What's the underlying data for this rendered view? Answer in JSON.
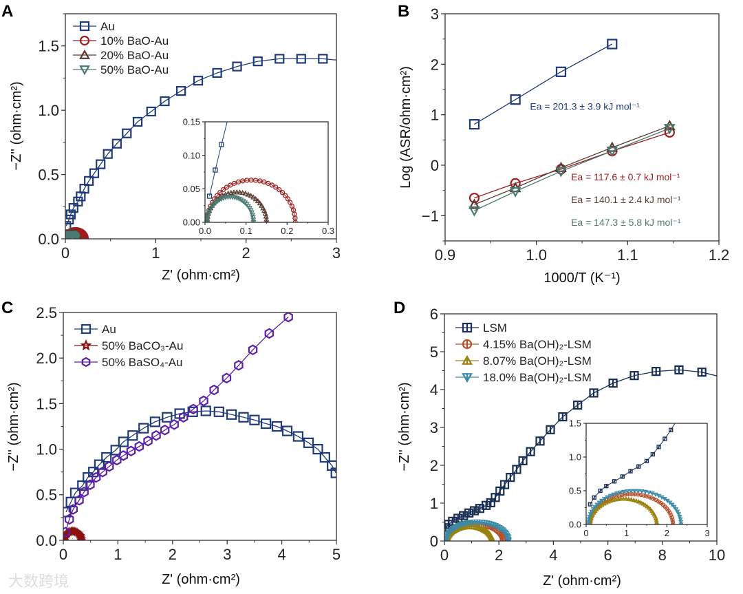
{
  "panels": [
    "A",
    "B",
    "C",
    "D"
  ],
  "watermark": "大数跨境",
  "chart_data": [
    {
      "id": "A",
      "type": "scatter",
      "xlabel": "Z' (ohm·cm²)",
      "ylabel": "−Z'' (ohm·cm²)",
      "xlim": [
        0,
        3
      ],
      "ylim": [
        0,
        1.75
      ],
      "xticks": [
        0,
        1,
        2,
        3
      ],
      "xticklabels": [
        "0",
        "1",
        "2",
        "3"
      ],
      "xminor": 0.5,
      "yticks": [
        0,
        0.5,
        1.0,
        1.5
      ],
      "yticklabels": [
        "0.0",
        "0.5",
        "1.0",
        "1.5"
      ],
      "yminor": 0.25,
      "series": [
        {
          "name": "Au",
          "marker": "square",
          "color": "#1f3a78",
          "points": [
            [
              0.01,
              0.1
            ],
            [
              0.04,
              0.15
            ],
            [
              0.06,
              0.19
            ],
            [
              0.09,
              0.24
            ],
            [
              0.14,
              0.29
            ],
            [
              0.17,
              0.33
            ],
            [
              0.21,
              0.39
            ],
            [
              0.26,
              0.45
            ],
            [
              0.32,
              0.51
            ],
            [
              0.39,
              0.58
            ],
            [
              0.47,
              0.66
            ],
            [
              0.57,
              0.74
            ],
            [
              0.68,
              0.82
            ],
            [
              0.8,
              0.91
            ],
            [
              0.95,
              0.99
            ],
            [
              1.1,
              1.07
            ],
            [
              1.28,
              1.15
            ],
            [
              1.47,
              1.23
            ],
            [
              1.68,
              1.29
            ],
            [
              1.9,
              1.34
            ],
            [
              2.13,
              1.38
            ],
            [
              2.37,
              1.4
            ],
            [
              2.61,
              1.4
            ],
            [
              2.85,
              1.4
            ]
          ],
          "line_end": [
            3.0,
            1.39
          ]
        },
        {
          "name": "10% BaO-Au",
          "marker": "circle",
          "color": "#a01c1c",
          "arc": {
            "from": 0.005,
            "to": 0.22,
            "peak": 0.063,
            "n": 32
          }
        },
        {
          "name": "20% BaO-Au",
          "marker": "triangle-up",
          "color": "#5a3a2e",
          "arc": {
            "from": 0.005,
            "to": 0.15,
            "peak": 0.045,
            "n": 32
          }
        },
        {
          "name": "50% BaO-Au",
          "marker": "triangle-down",
          "color": "#4a7a72",
          "arc": {
            "from": 0.005,
            "to": 0.118,
            "peak": 0.038,
            "n": 32
          }
        }
      ],
      "legend": {
        "placement": "top-left"
      },
      "inset": {
        "xlim": [
          0,
          0.3
        ],
        "ylim": [
          0,
          0.15
        ],
        "xticks": [
          0,
          0.1,
          0.2,
          0.3
        ],
        "xticklabels": [
          "0.0",
          "0.1",
          "0.2",
          "0.3"
        ],
        "xminor": 0.05,
        "yticks": [
          0,
          0.05,
          0.1,
          0.15
        ],
        "yticklabels": [
          "0.00",
          "0.05",
          "0.10",
          "0.15"
        ],
        "yminor": 0.025,
        "au_points": [
          [
            0.011,
            0.039
          ],
          [
            0.025,
            0.078
          ],
          [
            0.04,
            0.116
          ]
        ],
        "au_line_end": [
          0.058,
          0.16
        ]
      }
    },
    {
      "id": "B",
      "type": "line",
      "xlabel": "1000/T (K⁻¹)",
      "ylabel": "Log (ASR/ohm·cm²)",
      "xlim": [
        0.9,
        1.2
      ],
      "ylim": [
        -1.5,
        3
      ],
      "xticks": [
        0.9,
        1.0,
        1.1,
        1.2
      ],
      "xticklabels": [
        "0.9",
        "1.0",
        "1.1",
        "1.2"
      ],
      "xminor": 0.05,
      "yticks": [
        -1,
        0,
        1,
        2,
        3
      ],
      "yticklabels": [
        "−1",
        "0",
        "1",
        "2",
        "3"
      ],
      "yminor": 0.5,
      "series": [
        {
          "name": "Au",
          "marker": "square",
          "color": "#1f3a78",
          "points": [
            [
              0.932,
              0.81
            ],
            [
              0.977,
              1.3
            ],
            [
              1.027,
              1.85
            ],
            [
              1.083,
              2.4
            ]
          ]
        },
        {
          "name": "10% BaO-Au",
          "marker": "circle",
          "color": "#a01c1c",
          "points": [
            [
              0.932,
              -0.65
            ],
            [
              0.977,
              -0.36
            ],
            [
              1.027,
              -0.08
            ],
            [
              1.083,
              0.28
            ],
            [
              1.146,
              0.65
            ]
          ]
        },
        {
          "name": "20% BaO-Au",
          "marker": "triangle-up",
          "color": "#5a3a2e",
          "points": [
            [
              0.932,
              -0.78
            ],
            [
              0.977,
              -0.45
            ],
            [
              1.027,
              -0.05
            ],
            [
              1.083,
              0.35
            ],
            [
              1.146,
              0.78
            ]
          ]
        },
        {
          "name": "50% BaO-Au",
          "marker": "triangle-down",
          "color": "#4a7a72",
          "points": [
            [
              0.932,
              -0.9
            ],
            [
              0.977,
              -0.52
            ],
            [
              1.027,
              -0.12
            ],
            [
              1.083,
              0.28
            ],
            [
              1.146,
              0.73
            ]
          ]
        }
      ],
      "annotations": [
        {
          "text": "Ea = 201.3 ± 3.9 kJ mol⁻¹",
          "color": "#1f3a78",
          "at": [
            0.993,
            1.1
          ]
        },
        {
          "text": "Ea = 117.6 ± 0.7 kJ mol⁻¹",
          "color": "#a01c1c",
          "at": [
            1.038,
            -0.3
          ]
        },
        {
          "text": "Ea = 140.1 ± 2.4 kJ mol⁻¹",
          "color": "#5a3a2e",
          "at": [
            1.038,
            -0.75
          ]
        },
        {
          "text": "Ea = 147.3 ± 5.8 kJ mol⁻¹",
          "color": "#4a7a72",
          "at": [
            1.038,
            -1.2
          ]
        }
      ]
    },
    {
      "id": "C",
      "type": "scatter",
      "xlabel": "Z' (ohm·cm²)",
      "ylabel": "−Z'' (ohm·cm²)",
      "xlim": [
        0,
        5
      ],
      "ylim": [
        0,
        2.5
      ],
      "xticks": [
        0,
        1,
        2,
        3,
        4,
        5
      ],
      "xticklabels": [
        "0",
        "1",
        "2",
        "3",
        "4",
        "5"
      ],
      "xminor": 0.5,
      "yticks": [
        0,
        0.5,
        1.0,
        1.5,
        2.0,
        2.5
      ],
      "yticklabels": [
        "0.0",
        "0.5",
        "1.0",
        "1.5",
        "2.0",
        "2.5"
      ],
      "yminor": 0.25,
      "series": [
        {
          "name": "Au",
          "marker": "square",
          "color": "#1f3a78",
          "points": [
            [
              0.05,
              0.31
            ],
            [
              0.14,
              0.42
            ],
            [
              0.22,
              0.52
            ],
            [
              0.35,
              0.6
            ],
            [
              0.45,
              0.69
            ],
            [
              0.55,
              0.75
            ],
            [
              0.66,
              0.83
            ],
            [
              0.79,
              0.91
            ],
            [
              0.96,
              0.99
            ],
            [
              1.1,
              1.08
            ],
            [
              1.27,
              1.15
            ],
            [
              1.47,
              1.23
            ],
            [
              1.68,
              1.3
            ],
            [
              1.9,
              1.35
            ],
            [
              2.13,
              1.39
            ],
            [
              2.37,
              1.41
            ],
            [
              2.61,
              1.42
            ],
            [
              2.85,
              1.41
            ],
            [
              3.08,
              1.38
            ],
            [
              3.3,
              1.35
            ],
            [
              3.5,
              1.32
            ],
            [
              3.71,
              1.28
            ],
            [
              3.91,
              1.25
            ],
            [
              4.1,
              1.2
            ],
            [
              4.3,
              1.14
            ],
            [
              4.49,
              1.07
            ],
            [
              4.66,
              1.0
            ],
            [
              4.79,
              0.91
            ],
            [
              4.92,
              0.82
            ],
            [
              4.99,
              0.74
            ]
          ]
        },
        {
          "name": "50% BaCO₃-Au",
          "marker": "star",
          "color": "#8b1010",
          "arc": {
            "from": 0.02,
            "to": 0.33,
            "peak": 0.1,
            "n": 18
          }
        },
        {
          "name": "50% BaSO₄-Au",
          "marker": "hexagon",
          "color": "#5b1fa8",
          "points": [
            [
              0.04,
              0.09
            ],
            [
              0.11,
              0.23
            ],
            [
              0.18,
              0.34
            ],
            [
              0.29,
              0.44
            ],
            [
              0.38,
              0.53
            ],
            [
              0.49,
              0.61
            ],
            [
              0.6,
              0.69
            ],
            [
              0.72,
              0.75
            ],
            [
              0.84,
              0.81
            ],
            [
              0.98,
              0.88
            ],
            [
              1.1,
              0.93
            ],
            [
              1.24,
              0.98
            ],
            [
              1.39,
              1.03
            ],
            [
              1.55,
              1.09
            ],
            [
              1.7,
              1.15
            ],
            [
              1.86,
              1.21
            ],
            [
              2.03,
              1.27
            ],
            [
              2.2,
              1.35
            ],
            [
              2.38,
              1.44
            ],
            [
              2.57,
              1.53
            ],
            [
              2.76,
              1.65
            ],
            [
              2.99,
              1.78
            ],
            [
              3.21,
              1.92
            ],
            [
              3.47,
              2.09
            ],
            [
              3.77,
              2.27
            ],
            [
              4.12,
              2.45
            ]
          ]
        }
      ],
      "legend": {
        "placement": "top-left"
      }
    },
    {
      "id": "D",
      "type": "scatter",
      "xlabel": "Z' (ohm·cm²)",
      "ylabel": "−Z'' (ohm·cm²)",
      "xlim": [
        0,
        10
      ],
      "ylim": [
        0,
        6
      ],
      "xticks": [
        0,
        2,
        4,
        6,
        8,
        10
      ],
      "xticklabels": [
        "0",
        "2",
        "4",
        "6",
        "8",
        "10"
      ],
      "xminor": 1,
      "yticks": [
        0,
        1,
        2,
        3,
        4,
        5,
        6
      ],
      "yticklabels": [
        "0",
        "1",
        "2",
        "3",
        "4",
        "5",
        "6"
      ],
      "yminor": 0.5,
      "series": [
        {
          "name": "LSM",
          "marker": "square-bar",
          "color": "#1a2f55",
          "points": [
            [
              0.05,
              0.35
            ],
            [
              0.15,
              0.44
            ],
            [
              0.3,
              0.52
            ],
            [
              0.5,
              0.6
            ],
            [
              0.7,
              0.67
            ],
            [
              0.9,
              0.74
            ],
            [
              1.1,
              0.8
            ],
            [
              1.3,
              0.86
            ],
            [
              1.53,
              0.94
            ],
            [
              1.7,
              1.01
            ],
            [
              1.87,
              1.15
            ],
            [
              2.04,
              1.32
            ],
            [
              2.21,
              1.49
            ],
            [
              2.42,
              1.68
            ],
            [
              2.65,
              1.89
            ],
            [
              2.88,
              2.12
            ],
            [
              3.16,
              2.36
            ],
            [
              3.51,
              2.64
            ],
            [
              3.89,
              2.94
            ],
            [
              4.34,
              3.28
            ],
            [
              4.89,
              3.59
            ],
            [
              5.48,
              3.91
            ],
            [
              6.19,
              4.17
            ],
            [
              6.97,
              4.37
            ],
            [
              7.77,
              4.48
            ],
            [
              8.61,
              4.52
            ],
            [
              9.45,
              4.46
            ]
          ],
          "line_end": [
            10.0,
            4.36
          ]
        },
        {
          "name": "4.15% Ba(OH)₂-LSM",
          "marker": "circle-bar",
          "color": "#b8502a",
          "arc": {
            "from": 0.1,
            "to": 2.15,
            "peak": 0.45,
            "n": 40
          }
        },
        {
          "name": "8.07% Ba(OH)₂-LSM",
          "marker": "triangle-up-bar",
          "color": "#9a8210",
          "arc": {
            "from": 0.1,
            "to": 1.75,
            "peak": 0.38,
            "n": 40
          }
        },
        {
          "name": "18.0% Ba(OH)₂-LSM",
          "marker": "triangle-down-bar",
          "color": "#3a8aa8",
          "arc": {
            "from": 0.05,
            "to": 2.35,
            "peak": 0.5,
            "n": 40
          }
        }
      ],
      "legend": {
        "placement": "top-left"
      },
      "inset": {
        "xlim": [
          0,
          3
        ],
        "ylim": [
          0,
          1.5
        ],
        "xticks": [
          0,
          1,
          2,
          3
        ],
        "xticklabels": [
          "0",
          "1",
          "2",
          "3"
        ],
        "xminor": 0.5,
        "yticks": [
          0,
          0.5,
          1.0,
          1.5
        ],
        "yticklabels": [
          "0.0",
          "0.5",
          "1.0",
          "1.5"
        ],
        "yminor": 0.25,
        "au_points": [
          [
            0.1,
            0.3
          ],
          [
            0.2,
            0.4
          ],
          [
            0.35,
            0.5
          ],
          [
            0.5,
            0.57
          ],
          [
            0.7,
            0.64
          ],
          [
            0.9,
            0.71
          ],
          [
            1.1,
            0.79
          ],
          [
            1.3,
            0.86
          ],
          [
            1.5,
            0.94
          ],
          [
            1.65,
            1.04
          ],
          [
            1.8,
            1.15
          ],
          [
            1.95,
            1.27
          ],
          [
            2.1,
            1.4
          ]
        ],
        "au_line_end": [
          2.2,
          1.5
        ]
      }
    }
  ]
}
